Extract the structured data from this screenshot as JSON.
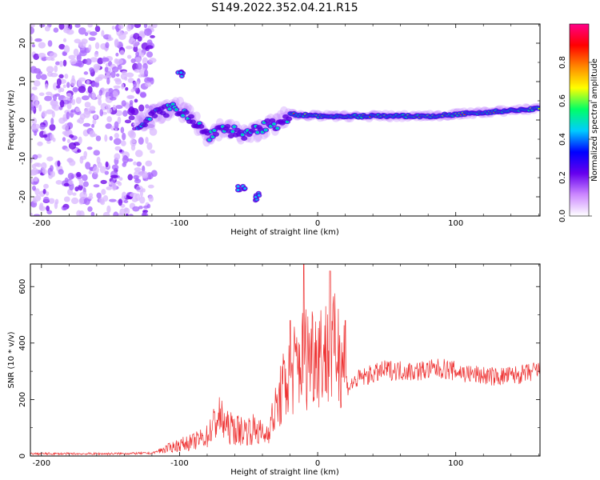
{
  "title": "S149.2022.352.04.21.R15",
  "chart_data": [
    {
      "type": "heatmap",
      "xlabel": "Height of straight line (km)",
      "ylabel": "Frequency (Hz)",
      "xlim": [
        -208,
        161
      ],
      "ylim": [
        -25,
        25
      ],
      "xticks": [
        -200,
        -100,
        0,
        100
      ],
      "yticks": [
        -20,
        -10,
        0,
        10,
        20
      ],
      "colorbar": {
        "label": "Normalized spectral amplitude",
        "range": [
          0,
          1
        ],
        "ticks": [
          0.0,
          0.2,
          0.4,
          0.6,
          0.8
        ],
        "colors": [
          "#ffffff",
          "#cc88ff",
          "#6600ee",
          "#0000ff",
          "#00ccff",
          "#00ff66",
          "#ffff00",
          "#ff8800",
          "#ff0000",
          "#ff0088"
        ]
      },
      "ridge": [
        {
          "x": -130,
          "y": -1
        },
        {
          "x": -115,
          "y": 2
        },
        {
          "x": -100,
          "y": 3
        },
        {
          "x": -90,
          "y": 0
        },
        {
          "x": -80,
          "y": -4
        },
        {
          "x": -70,
          "y": -2
        },
        {
          "x": -60,
          "y": -3
        },
        {
          "x": -50,
          "y": -4
        },
        {
          "x": -40,
          "y": -2
        },
        {
          "x": -30,
          "y": -1
        },
        {
          "x": -20,
          "y": 1.5
        },
        {
          "x": 0,
          "y": 1
        },
        {
          "x": 40,
          "y": 1
        },
        {
          "x": 80,
          "y": 1
        },
        {
          "x": 120,
          "y": 2
        },
        {
          "x": 160,
          "y": 3
        }
      ],
      "secondary": [
        {
          "x": -100,
          "y": 12
        },
        {
          "x": -55,
          "y": -18
        },
        {
          "x": -45,
          "y": -20
        }
      ]
    },
    {
      "type": "line",
      "xlabel": "Height of straight line (km)",
      "ylabel": "SNR (10 * v/v)",
      "xlim": [
        -208,
        161
      ],
      "ylim": [
        0,
        680
      ],
      "xticks": [
        -200,
        -100,
        0,
        100
      ],
      "yticks": [
        0,
        200,
        400,
        600
      ],
      "color": "#ee3333",
      "envelope": [
        {
          "x": -208,
          "y": 8
        },
        {
          "x": -150,
          "y": 8
        },
        {
          "x": -120,
          "y": 10
        },
        {
          "x": -110,
          "y": 25
        },
        {
          "x": -100,
          "y": 40
        },
        {
          "x": -90,
          "y": 50
        },
        {
          "x": -80,
          "y": 70
        },
        {
          "x": -72,
          "y": 140
        },
        {
          "x": -65,
          "y": 100
        },
        {
          "x": -55,
          "y": 90
        },
        {
          "x": -45,
          "y": 95
        },
        {
          "x": -38,
          "y": 70
        },
        {
          "x": -32,
          "y": 140
        },
        {
          "x": -25,
          "y": 240
        },
        {
          "x": -18,
          "y": 300
        },
        {
          "x": -12,
          "y": 340
        },
        {
          "x": -5,
          "y": 370
        },
        {
          "x": 0,
          "y": 380
        },
        {
          "x": 8,
          "y": 360
        },
        {
          "x": 15,
          "y": 380
        },
        {
          "x": 20,
          "y": 340
        },
        {
          "x": 21,
          "y": 240
        },
        {
          "x": 30,
          "y": 275
        },
        {
          "x": 50,
          "y": 305
        },
        {
          "x": 70,
          "y": 300
        },
        {
          "x": 90,
          "y": 310
        },
        {
          "x": 110,
          "y": 290
        },
        {
          "x": 130,
          "y": 280
        },
        {
          "x": 150,
          "y": 290
        },
        {
          "x": 161,
          "y": 305
        }
      ],
      "peaks": [
        {
          "x": -10,
          "y": 680
        },
        {
          "x": 9,
          "y": 655
        },
        {
          "x": -20,
          "y": 480
        },
        {
          "x": 20,
          "y": 480
        }
      ]
    }
  ]
}
